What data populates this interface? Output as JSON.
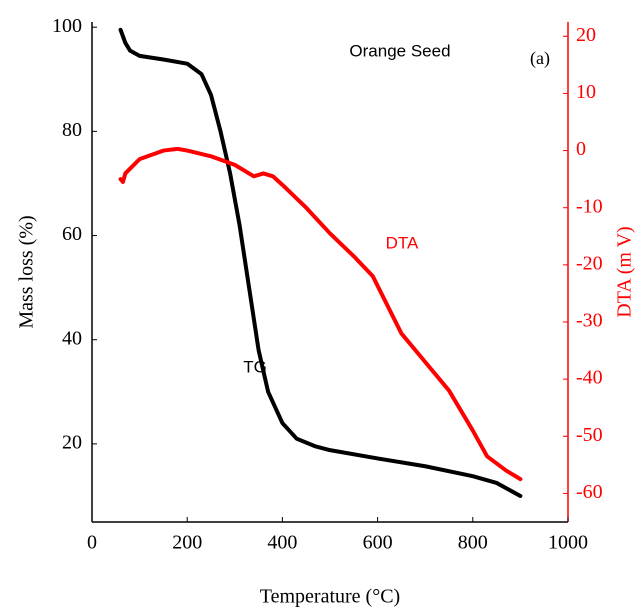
{
  "chart_data": {
    "type": "line",
    "title": "Orange Seed",
    "panel_label": "(a)",
    "x_label": "Temperature (°C)",
    "y_label": "Mass loss (%)",
    "y2_label": "DTA (m V)",
    "xlim": [
      0,
      1000
    ],
    "xticks": [
      0,
      200,
      400,
      600,
      800,
      1000
    ],
    "ylim": [
      5,
      101
    ],
    "yticks": [
      20,
      40,
      60,
      80,
      100
    ],
    "y2lim": [
      -65,
      22.5
    ],
    "y2ticks": [
      -60,
      -50,
      -40,
      -30,
      -20,
      -10,
      0,
      10,
      20
    ],
    "y2_color": "#ff0000",
    "series": [
      {
        "name": "TG",
        "color": "#000000",
        "x": [
          60,
          70,
          80,
          100,
          150,
          200,
          230,
          250,
          270,
          290,
          310,
          330,
          350,
          370,
          400,
          430,
          470,
          500,
          600,
          700,
          800,
          850,
          900
        ],
        "values": [
          99.5,
          97,
          95.5,
          94.5,
          93.8,
          93,
          91,
          87,
          80,
          72,
          62,
          50,
          38,
          30,
          24,
          21,
          19.5,
          18.8,
          17.2,
          15.7,
          13.8,
          12.5,
          10
        ]
      },
      {
        "name": "DTA",
        "color": "#ff0000",
        "axis": "y2",
        "x": [
          60,
          65,
          70,
          100,
          150,
          180,
          200,
          250,
          300,
          340,
          360,
          380,
          400,
          450,
          500,
          550,
          590,
          620,
          650,
          700,
          750,
          800,
          830,
          870,
          900
        ],
        "values": [
          -5,
          -5.5,
          -4,
          -1.5,
          0,
          0.3,
          0,
          -1,
          -2.5,
          -4.5,
          -4,
          -4.5,
          -6,
          -10,
          -14.5,
          -18.5,
          -22,
          -27,
          -32,
          -37,
          -42,
          -49,
          -53.5,
          -56,
          -57.5
        ]
      }
    ]
  }
}
